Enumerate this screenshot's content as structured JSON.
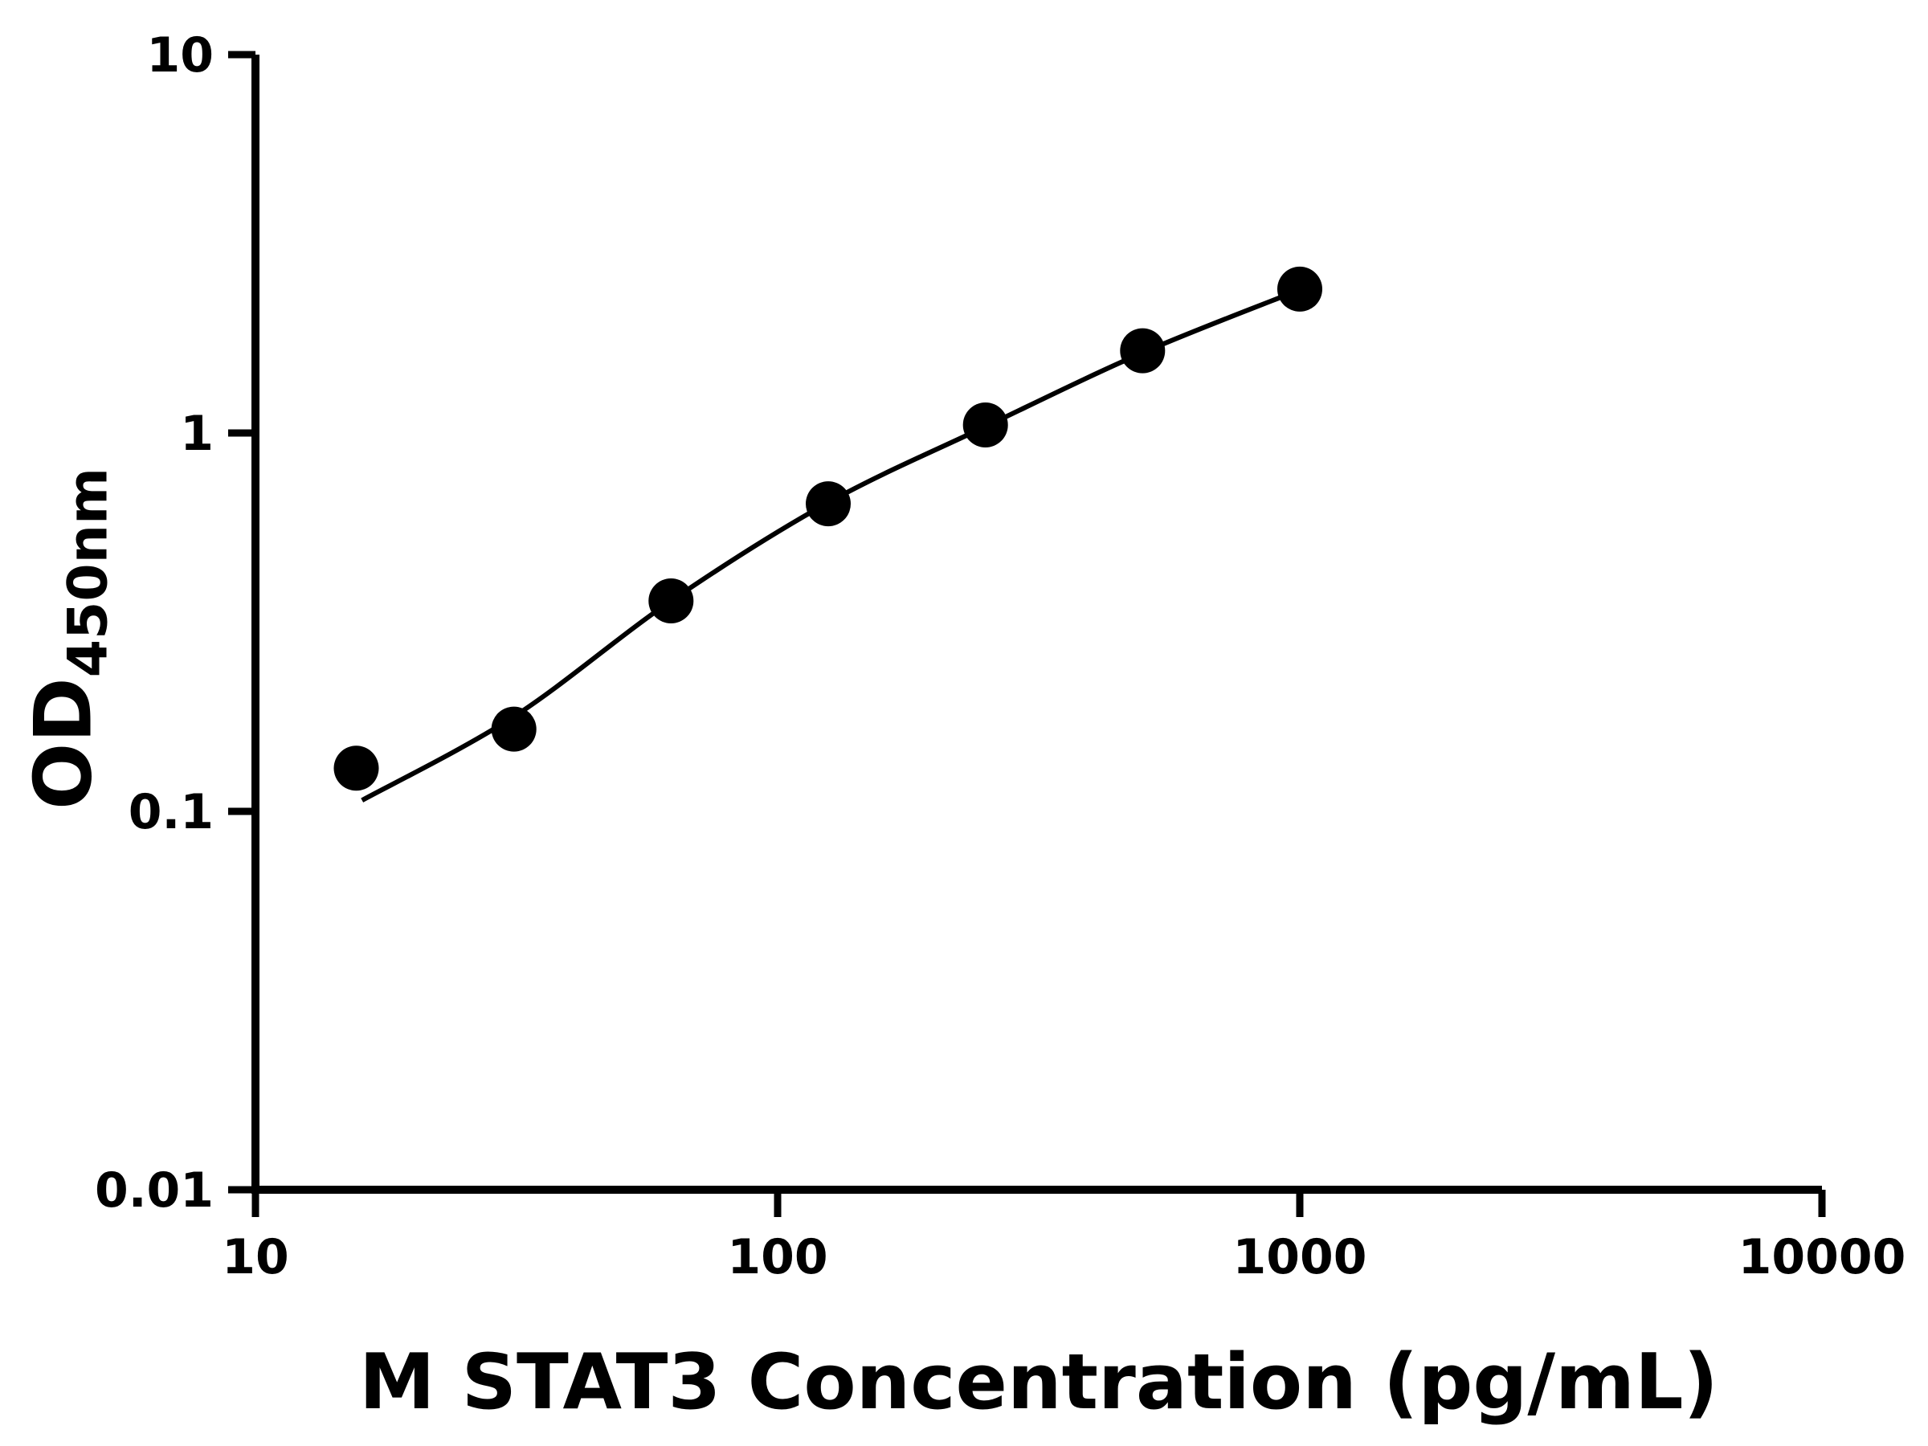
{
  "chart_data": {
    "type": "scatter",
    "title": "",
    "xlabel": "M STAT3 Concentration (pg/mL)",
    "ylabel_main": "OD",
    "ylabel_sub": "450nm",
    "x_scale": "log",
    "y_scale": "log",
    "xlim": [
      10,
      10000
    ],
    "ylim": [
      0.01,
      10
    ],
    "x_ticks": [
      10,
      100,
      1000,
      10000
    ],
    "y_ticks": [
      0.01,
      0.1,
      1,
      10
    ],
    "x": [
      15.6,
      31.25,
      62.5,
      125,
      250,
      500,
      1000
    ],
    "y": [
      0.13,
      0.165,
      0.36,
      0.65,
      1.05,
      1.65,
      2.4
    ],
    "fit_curve": {
      "x": [
        16,
        31.25,
        62.5,
        125,
        250,
        500,
        1000
      ],
      "y": [
        0.107,
        0.178,
        0.36,
        0.655,
        1.04,
        1.63,
        2.39
      ]
    },
    "grid": false,
    "legend": "none",
    "colors": {
      "points": "#000000",
      "curve": "#000000",
      "axes": "#000000",
      "background": "#ffffff"
    }
  }
}
